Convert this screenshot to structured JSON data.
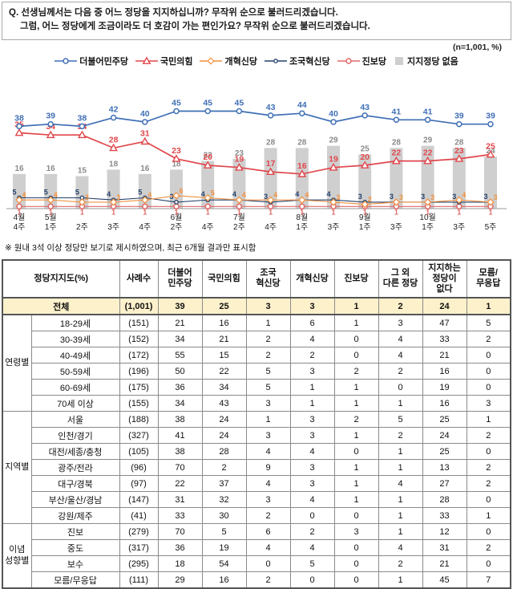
{
  "question": {
    "line1": "Q. 선생님께서는 다음 중 어느 정당을 지지하십니까? 무작위 순으로 불러드리겠습니다.",
    "line2": "그럼, 어느 정당에게 조금이라도 더 호감이 가는 편인가요? 무작위 순으로 불러드리겠습니다.",
    "sample_note": "(n=1,001, %)"
  },
  "legend": [
    {
      "label": "더불어민주당",
      "color": "#3f6fb5",
      "marker": "circle",
      "type": "line"
    },
    {
      "label": "국민의힘",
      "color": "#e0474c",
      "marker": "triangle",
      "type": "line"
    },
    {
      "label": "개혁신당",
      "color": "#f0913f",
      "marker": "diamond",
      "type": "line"
    },
    {
      "label": "조국혁신당",
      "color": "#24406b",
      "marker": "circle-small",
      "type": "line"
    },
    {
      "label": "진보당",
      "color": "#e06a6a",
      "marker": "circle",
      "type": "line"
    },
    {
      "label": "지지정당 없음",
      "color": "#cfcfcf",
      "marker": "square",
      "type": "bar"
    }
  ],
  "chart_data": {
    "type": "line+bar",
    "title": "정당지지도 추이",
    "ylim": [
      0,
      50
    ],
    "categories": [
      {
        "month": "4월",
        "week": "4주"
      },
      {
        "month": "5월",
        "week": "1주"
      },
      {
        "week": "2주"
      },
      {
        "week": "3주"
      },
      {
        "week": "4주"
      },
      {
        "month": "6월",
        "week": "2주"
      },
      {
        "week": "4주"
      },
      {
        "month": "7월",
        "week": "2주"
      },
      {
        "week": "4주"
      },
      {
        "month": "8월",
        "week": "1주"
      },
      {
        "week": "3주"
      },
      {
        "month": "9월",
        "week": "1주"
      },
      {
        "week": "3주"
      },
      {
        "month": "10월",
        "week": "1주"
      },
      {
        "week": "3주"
      },
      {
        "week": "5주"
      }
    ],
    "series": [
      {
        "key": "democratic-party",
        "name": "더불어민주당",
        "color": "#3f6fb5",
        "marker": "circle",
        "values": [
          38,
          39,
          38,
          42,
          40,
          45,
          45,
          45,
          43,
          44,
          40,
          43,
          41,
          41,
          39,
          39
        ]
      },
      {
        "key": "people-power-party",
        "name": "국민의힘",
        "color": "#e0474c",
        "marker": "triangle",
        "values": [
          35,
          34,
          34,
          28,
          31,
          23,
          20,
          19,
          17,
          16,
          19,
          20,
          22,
          22,
          23,
          25
        ]
      },
      {
        "key": "reform-party",
        "name": "개혁신당",
        "color": "#f0913f",
        "marker": "diamond",
        "values": [
          4,
          4,
          3,
          3,
          4,
          6,
          5,
          4,
          4,
          4,
          3,
          2,
          3,
          3,
          4,
          3
        ]
      },
      {
        "key": "rebuilding-korea-party",
        "name": "조국혁신당",
        "color": "#24406b",
        "marker": "circle-small",
        "values": [
          5,
          5,
          5,
          4,
          5,
          3,
          4,
          4,
          3,
          4,
          4,
          3,
          3,
          3,
          3,
          3
        ]
      },
      {
        "key": "progressive-party",
        "name": "진보당",
        "color": "#e06a6a",
        "marker": "circle",
        "values": [
          1,
          1,
          1,
          1,
          1,
          1,
          1,
          1,
          1,
          1,
          1,
          1,
          1,
          1,
          1,
          1
        ]
      }
    ],
    "bar_series": {
      "key": "no-party",
      "name": "지지정당 없음",
      "color": "#cfcfcf",
      "label_color": "#8a8a8a",
      "values": [
        16,
        16,
        15,
        18,
        16,
        18,
        22,
        23,
        28,
        28,
        29,
        25,
        28,
        29,
        28,
        24
      ]
    }
  },
  "footnote": "※ 원내 3석 이상 정당만 보기로 제시하였으며, 최근 6개월 결과만 표시함",
  "table": {
    "header": {
      "col_title": "정당지지도(%)",
      "sample_col": "사례수",
      "party_cols": [
        "더불어\n민주당",
        "국민의힘",
        "조국\n혁신당",
        "개혁신당",
        "진보당",
        "그 외\n다른 정당",
        "지지하는\n정당이\n없다",
        "모름/\n무응답"
      ]
    },
    "total_row": {
      "label": "전체",
      "sample": "(1,001)",
      "values": [
        "39",
        "25",
        "3",
        "3",
        "1",
        "2",
        "24",
        "1"
      ]
    },
    "groups": [
      {
        "name": "연령별",
        "rows": [
          {
            "label": "18-29세",
            "sample": "(151)",
            "values": [
              "21",
              "16",
              "1",
              "6",
              "1",
              "3",
              "47",
              "5"
            ]
          },
          {
            "label": "30-39세",
            "sample": "(152)",
            "values": [
              "34",
              "21",
              "2",
              "4",
              "0",
              "4",
              "33",
              "2"
            ]
          },
          {
            "label": "40-49세",
            "sample": "(172)",
            "values": [
              "55",
              "15",
              "2",
              "2",
              "0",
              "4",
              "21",
              "0"
            ]
          },
          {
            "label": "50-59세",
            "sample": "(196)",
            "values": [
              "50",
              "22",
              "5",
              "3",
              "2",
              "2",
              "16",
              "0"
            ]
          },
          {
            "label": "60-69세",
            "sample": "(175)",
            "values": [
              "36",
              "34",
              "5",
              "1",
              "1",
              "0",
              "19",
              "0"
            ]
          },
          {
            "label": "70세 이상",
            "sample": "(155)",
            "values": [
              "34",
              "43",
              "3",
              "1",
              "1",
              "1",
              "16",
              "3"
            ]
          }
        ]
      },
      {
        "name": "지역별",
        "rows": [
          {
            "label": "서울",
            "sample": "(188)",
            "values": [
              "38",
              "24",
              "1",
              "3",
              "2",
              "5",
              "25",
              "1"
            ]
          },
          {
            "label": "인천/경기",
            "sample": "(327)",
            "values": [
              "41",
              "24",
              "3",
              "3",
              "1",
              "2",
              "24",
              "2"
            ]
          },
          {
            "label": "대전/세종/충청",
            "sample": "(105)",
            "values": [
              "38",
              "28",
              "4",
              "4",
              "0",
              "1",
              "25",
              "0"
            ]
          },
          {
            "label": "광주/전라",
            "sample": "(96)",
            "values": [
              "70",
              "2",
              "9",
              "3",
              "1",
              "1",
              "13",
              "2"
            ]
          },
          {
            "label": "대구/경북",
            "sample": "(97)",
            "values": [
              "22",
              "37",
              "4",
              "3",
              "1",
              "4",
              "27",
              "2"
            ]
          },
          {
            "label": "부산/울산/경남",
            "sample": "(147)",
            "values": [
              "31",
              "32",
              "3",
              "4",
              "1",
              "1",
              "28",
              "0"
            ]
          },
          {
            "label": "강원/제주",
            "sample": "(41)",
            "values": [
              "33",
              "30",
              "2",
              "0",
              "0",
              "1",
              "33",
              "1"
            ]
          }
        ]
      },
      {
        "name": "이념\n성향별",
        "rows": [
          {
            "label": "진보",
            "sample": "(279)",
            "values": [
              "70",
              "5",
              "6",
              "2",
              "3",
              "1",
              "12",
              "0"
            ]
          },
          {
            "label": "중도",
            "sample": "(317)",
            "values": [
              "36",
              "19",
              "4",
              "4",
              "0",
              "4",
              "31",
              "2"
            ]
          },
          {
            "label": "보수",
            "sample": "(295)",
            "values": [
              "18",
              "54",
              "0",
              "5",
              "0",
              "2",
              "21",
              "0"
            ]
          },
          {
            "label": "모름/무응답",
            "sample": "(111)",
            "values": [
              "29",
              "16",
              "2",
              "0",
              "0",
              "1",
              "45",
              "7"
            ]
          }
        ]
      }
    ]
  }
}
